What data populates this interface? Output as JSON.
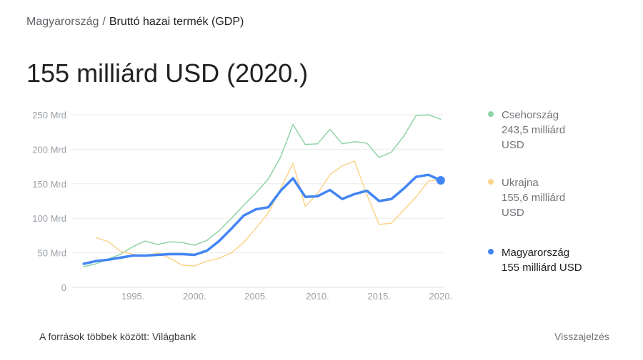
{
  "breadcrumb": {
    "parent": "Magyarország",
    "separator": "/",
    "current": "Bruttó hazai termék (GDP)"
  },
  "headline": "155 milliárd USD (2020.)",
  "footer": {
    "source": "A források többek között: Világbank",
    "feedback": "Visszajelzés"
  },
  "legend": [
    {
      "name": "Csehország",
      "value_line1": "243,5 milliárd",
      "value_line2": "USD",
      "color": "#8fd3a5",
      "active": false
    },
    {
      "name": "Ukrajna",
      "value_line1": "155,6 milliárd",
      "value_line2": "USD",
      "color": "#fbd38a",
      "active": false
    },
    {
      "name": "Magyarország",
      "value_line1": "155 milliárd USD",
      "value_line2": "",
      "color": "#4285f4",
      "active": true
    }
  ],
  "chart_data": {
    "type": "line",
    "title": "",
    "xlabel": "",
    "ylabel": "",
    "xlim": [
      1991,
      2020
    ],
    "ylim": [
      0,
      250
    ],
    "y_ticks": [
      0,
      50,
      100,
      150,
      200,
      250
    ],
    "y_tick_labels": [
      "0",
      "50 Mrd",
      "100 Mrd",
      "150 Mrd",
      "200 Mrd",
      "250 Mrd"
    ],
    "x_ticks": [
      1995,
      2000,
      2005,
      2010,
      2015,
      2020
    ],
    "x_tick_labels": [
      "1995.",
      "2000.",
      "2005.",
      "2010.",
      "2015.",
      "2020."
    ],
    "grid": true,
    "legend_position": "right",
    "series": [
      {
        "name": "Csehország",
        "color": "#8fd3a5",
        "x": [
          1991,
          1992,
          1993,
          1994,
          1995,
          1996,
          1997,
          1998,
          1999,
          2000,
          2001,
          2002,
          2003,
          2004,
          2005,
          2006,
          2007,
          2008,
          2009,
          2010,
          2011,
          2012,
          2013,
          2014,
          2015,
          2016,
          2017,
          2018,
          2019,
          2020
        ],
        "values": [
          30,
          34,
          41,
          48,
          59,
          67,
          62,
          66,
          65,
          61,
          68,
          82,
          100,
          119,
          137,
          157,
          189,
          236,
          207,
          208,
          229,
          208,
          211,
          209,
          188,
          196,
          219,
          249,
          250,
          243.5
        ]
      },
      {
        "name": "Ukrajna",
        "color": "#fbd38a",
        "x": [
          1992,
          1993,
          1994,
          1995,
          1996,
          1997,
          1998,
          1999,
          2000,
          2001,
          2002,
          2003,
          2004,
          2005,
          2006,
          2007,
          2008,
          2009,
          2010,
          2011,
          2012,
          2013,
          2014,
          2015,
          2016,
          2017,
          2018,
          2019,
          2020
        ],
        "values": [
          72,
          66,
          52,
          48,
          45,
          50,
          42,
          32,
          31,
          38,
          42,
          50,
          65,
          86,
          108,
          143,
          180,
          117,
          136,
          163,
          176,
          183,
          134,
          91,
          93,
          112,
          131,
          154,
          155.6
        ]
      },
      {
        "name": "Magyarország",
        "color": "#4285f4",
        "x": [
          1991,
          1992,
          1993,
          1994,
          1995,
          1996,
          1997,
          1998,
          1999,
          2000,
          2001,
          2002,
          2003,
          2004,
          2005,
          2006,
          2007,
          2008,
          2009,
          2010,
          2011,
          2012,
          2013,
          2014,
          2015,
          2016,
          2017,
          2018,
          2019,
          2020
        ],
        "values": [
          34,
          38,
          40,
          43,
          46,
          46,
          47,
          48,
          48,
          47,
          53,
          67,
          85,
          104,
          113,
          116,
          140,
          158,
          131,
          132,
          141,
          128,
          135,
          140,
          125,
          128,
          143,
          160,
          163,
          155
        ]
      }
    ]
  }
}
